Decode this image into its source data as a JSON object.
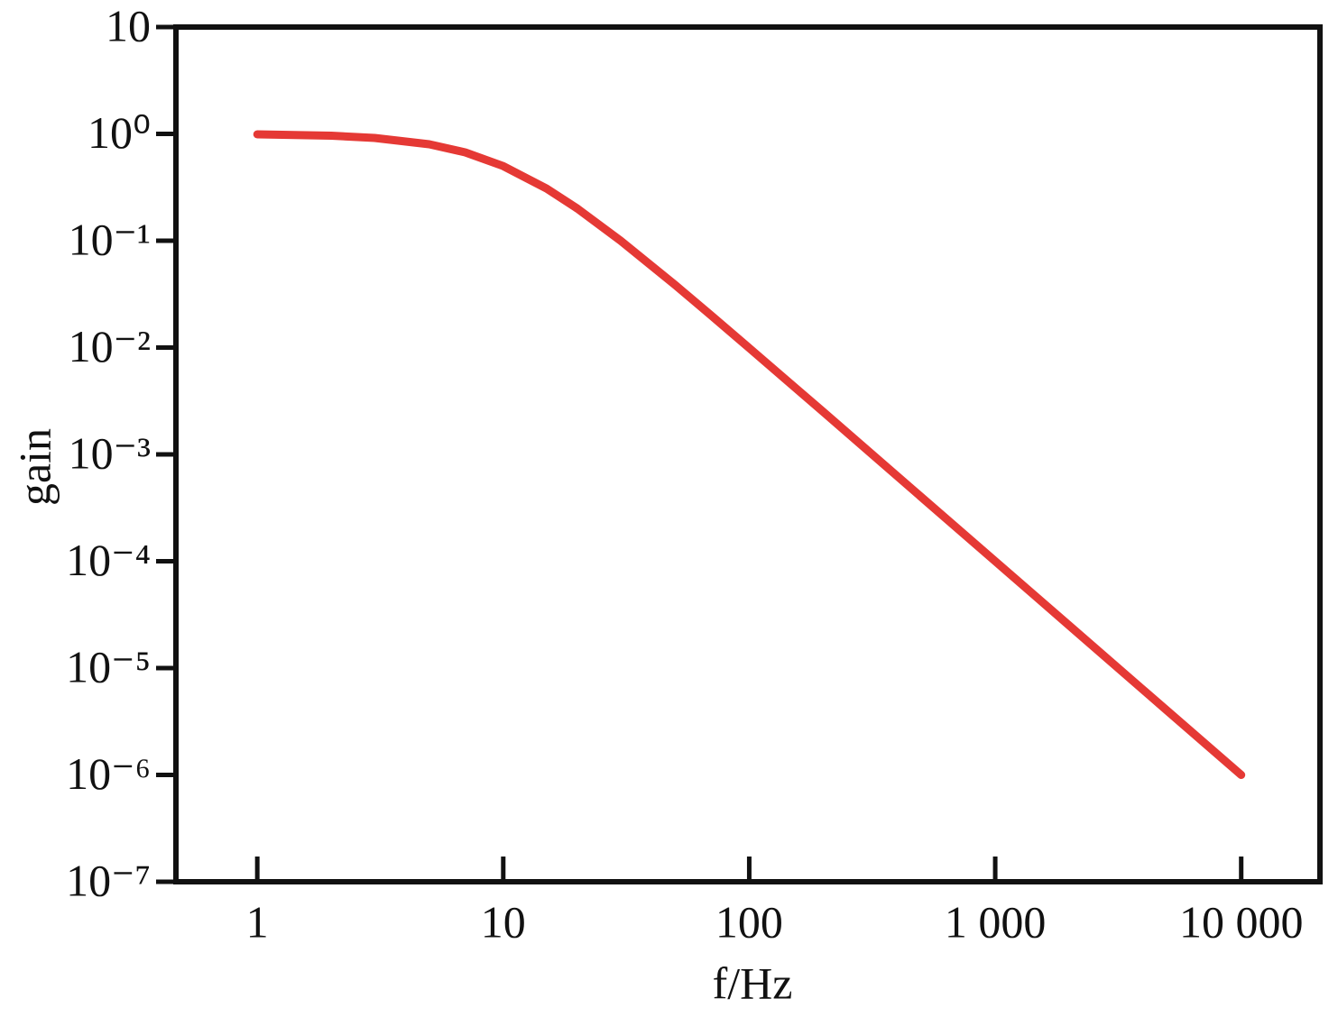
{
  "chart_data": {
    "type": "line",
    "xlabel": "f/Hz",
    "ylabel": "gain",
    "x": [
      1,
      2,
      3,
      5,
      7,
      10,
      15,
      20,
      30,
      50,
      70,
      100,
      200,
      500,
      1000,
      2000,
      5000,
      10000
    ],
    "series": [
      {
        "color": "#e53935",
        "values": [
          0.99,
          0.962,
          0.917,
          0.8,
          0.671,
          0.5,
          0.308,
          0.2,
          0.1,
          0.0385,
          0.02,
          0.0099,
          0.0025,
          0.0004,
          0.0001,
          2.5e-05,
          4e-06,
          1e-06
        ]
      }
    ],
    "xscale": "log",
    "yscale": "log",
    "xlim": [
      0.467,
      20900
    ],
    "ylim": [
      1e-07,
      10
    ],
    "xticks": [
      1,
      10,
      100,
      {
        "value": 1000,
        "label": "1 000"
      },
      {
        "value": 10000,
        "label": "10 000"
      }
    ],
    "yticks": [
      10,
      {
        "value": 1,
        "label": "10⁰"
      },
      {
        "value": 0.1,
        "label": "10⁻¹"
      },
      {
        "value": 0.01,
        "label": "10⁻²"
      },
      {
        "value": 0.001,
        "label": "10⁻³"
      },
      {
        "value": 0.0001,
        "label": "10⁻⁴"
      },
      {
        "value": 1e-05,
        "label": "10⁻⁵"
      },
      {
        "value": 1e-06,
        "label": "10⁻⁶"
      },
      {
        "value": 1e-07,
        "label": "10⁻⁷"
      }
    ]
  }
}
